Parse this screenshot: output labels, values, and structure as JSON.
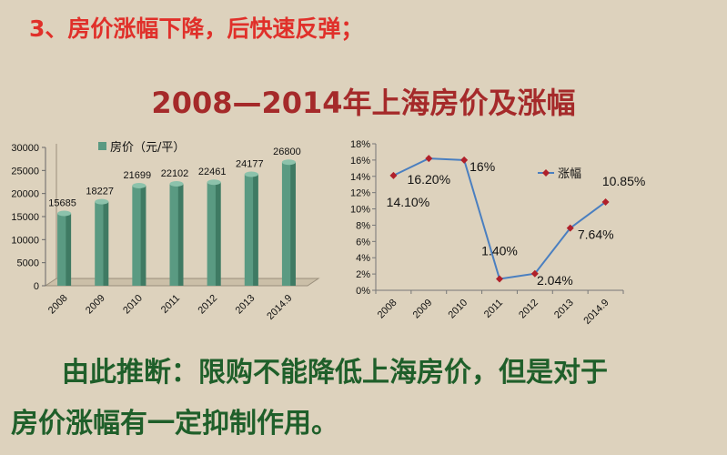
{
  "slide": {
    "heading": "3、房价涨幅下降，后快速反弹；",
    "title": "2008—2014年上海房价及涨幅",
    "conclusion_line1": "由此推断：限购不能降低上海房价，但是对于",
    "conclusion_line2": "房价涨幅有一定抑制作用。"
  },
  "chart_data": [
    {
      "type": "bar",
      "categories": [
        "2008",
        "2009",
        "2010",
        "2011",
        "2012",
        "2013",
        "2014.9"
      ],
      "series": [
        {
          "name": "房价（元/平）",
          "values": [
            15685,
            18227,
            21699,
            22102,
            22461,
            24177,
            26800
          ]
        }
      ],
      "data_labels": [
        "15685",
        "18227",
        "21699",
        "22102",
        "22461",
        "24177",
        "26800"
      ],
      "y_ticks": [
        "0",
        "5000",
        "10000",
        "15000",
        "20000",
        "25000",
        "30000"
      ],
      "ylim": [
        0,
        30000
      ],
      "legend": "top",
      "color": "#5a9a82"
    },
    {
      "type": "line",
      "categories": [
        "2008",
        "2009",
        "2010",
        "2011",
        "2012",
        "2013",
        "2014.9"
      ],
      "series": [
        {
          "name": "涨幅",
          "values": [
            14.1,
            16.2,
            16.0,
            1.4,
            2.04,
            7.64,
            10.85
          ]
        }
      ],
      "data_labels": [
        "14.10%",
        "16.20%",
        "16%",
        "1.40%",
        "2.04%",
        "7.64%",
        "10.85%"
      ],
      "y_ticks": [
        "0%",
        "2%",
        "4%",
        "6%",
        "8%",
        "10%",
        "12%",
        "14%",
        "16%",
        "18%"
      ],
      "ylim": [
        0,
        18
      ],
      "legend": "top-right",
      "line_color": "#4a7fc0",
      "marker_color": "#b0202a"
    }
  ]
}
